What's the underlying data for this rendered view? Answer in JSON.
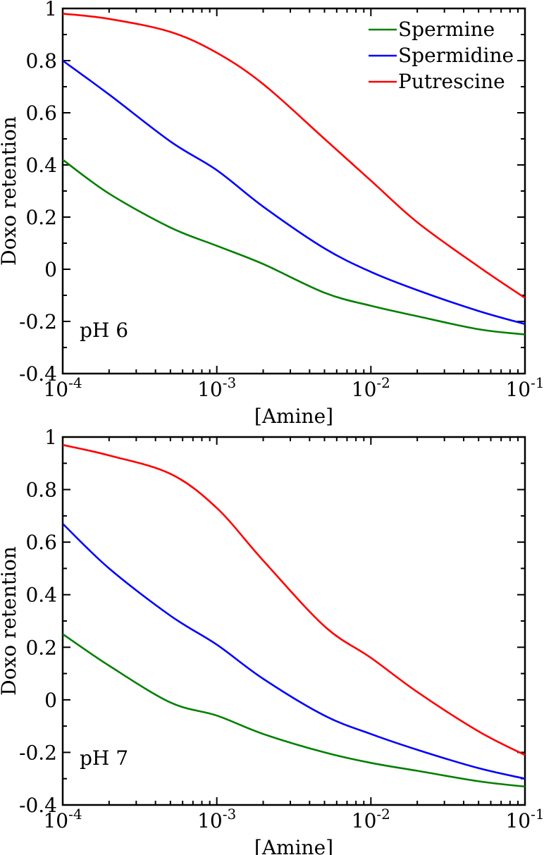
{
  "chart_data": [
    {
      "type": "line",
      "xlabel": "[Amine]",
      "ylabel": "Doxo retention",
      "annotation": "pH 6",
      "xscale": "log",
      "xlim": [
        0.0001,
        0.1
      ],
      "ylim": [
        -0.4,
        1
      ],
      "xticks": [
        {
          "value": 0.0001,
          "base": "10",
          "exp": "-4"
        },
        {
          "value": 0.001,
          "base": "10",
          "exp": "-3"
        },
        {
          "value": 0.01,
          "base": "10",
          "exp": "-2"
        },
        {
          "value": 0.1,
          "base": "10",
          "exp": "-1"
        }
      ],
      "yticks": [
        {
          "value": -0.4,
          "label": "-0.4"
        },
        {
          "value": -0.2,
          "label": "-0.2"
        },
        {
          "value": 0,
          "label": "0"
        },
        {
          "value": 0.2,
          "label": "0.2"
        },
        {
          "value": 0.4,
          "label": "0.4"
        },
        {
          "value": 0.6,
          "label": "0.6"
        },
        {
          "value": 0.8,
          "label": "0.8"
        },
        {
          "value": 1,
          "label": "1"
        }
      ],
      "legend_position": "top-right",
      "series": [
        {
          "name": "Spermine",
          "color": "#008000",
          "x": [
            0.0001,
            0.0002,
            0.0005,
            0.001,
            0.002,
            0.005,
            0.01,
            0.02,
            0.05,
            0.1
          ],
          "y": [
            0.42,
            0.29,
            0.16,
            0.09,
            0.02,
            -0.09,
            -0.14,
            -0.18,
            -0.23,
            -0.25
          ]
        },
        {
          "name": "Spermidine",
          "color": "#0000ff",
          "x": [
            0.0001,
            0.0002,
            0.0005,
            0.001,
            0.002,
            0.005,
            0.01,
            0.02,
            0.05,
            0.1
          ],
          "y": [
            0.8,
            0.67,
            0.49,
            0.38,
            0.24,
            0.08,
            -0.01,
            -0.08,
            -0.16,
            -0.21
          ]
        },
        {
          "name": "Putrescine",
          "color": "#ff0000",
          "x": [
            0.0001,
            0.0002,
            0.0005,
            0.001,
            0.002,
            0.005,
            0.01,
            0.02,
            0.05,
            0.1
          ],
          "y": [
            0.98,
            0.96,
            0.91,
            0.83,
            0.71,
            0.5,
            0.34,
            0.18,
            0.01,
            -0.11
          ]
        }
      ]
    },
    {
      "type": "line",
      "xlabel": "[Amine]",
      "ylabel": "Doxo retention",
      "annotation": "pH 7",
      "xscale": "log",
      "xlim": [
        0.0001,
        0.1
      ],
      "ylim": [
        -0.4,
        1
      ],
      "xticks": [
        {
          "value": 0.0001,
          "base": "10",
          "exp": "-4"
        },
        {
          "value": 0.001,
          "base": "10",
          "exp": "-3"
        },
        {
          "value": 0.01,
          "base": "10",
          "exp": "-2"
        },
        {
          "value": 0.1,
          "base": "10",
          "exp": "-1"
        }
      ],
      "yticks": [
        {
          "value": -0.4,
          "label": "-0.4"
        },
        {
          "value": -0.2,
          "label": "-0.2"
        },
        {
          "value": 0,
          "label": "0"
        },
        {
          "value": 0.2,
          "label": "0.2"
        },
        {
          "value": 0.4,
          "label": "0.4"
        },
        {
          "value": 0.6,
          "label": "0.6"
        },
        {
          "value": 0.8,
          "label": "0.8"
        },
        {
          "value": 1,
          "label": "1"
        }
      ],
      "legend_position": "none",
      "series": [
        {
          "name": "Spermine",
          "color": "#008000",
          "x": [
            0.0001,
            0.0002,
            0.0005,
            0.001,
            0.002,
            0.005,
            0.01,
            0.02,
            0.05,
            0.1
          ],
          "y": [
            0.25,
            0.13,
            -0.01,
            -0.06,
            -0.13,
            -0.2,
            -0.24,
            -0.27,
            -0.31,
            -0.33
          ]
        },
        {
          "name": "Spermidine",
          "color": "#0000ff",
          "x": [
            0.0001,
            0.0002,
            0.0005,
            0.001,
            0.002,
            0.005,
            0.01,
            0.02,
            0.05,
            0.1
          ],
          "y": [
            0.67,
            0.5,
            0.32,
            0.21,
            0.08,
            -0.06,
            -0.13,
            -0.19,
            -0.26,
            -0.3
          ]
        },
        {
          "name": "Putrescine",
          "color": "#ff0000",
          "x": [
            0.0001,
            0.0002,
            0.0005,
            0.001,
            0.002,
            0.005,
            0.01,
            0.02,
            0.05,
            0.1
          ],
          "y": [
            0.97,
            0.93,
            0.86,
            0.73,
            0.53,
            0.28,
            0.16,
            0.03,
            -0.12,
            -0.21
          ]
        }
      ]
    }
  ]
}
